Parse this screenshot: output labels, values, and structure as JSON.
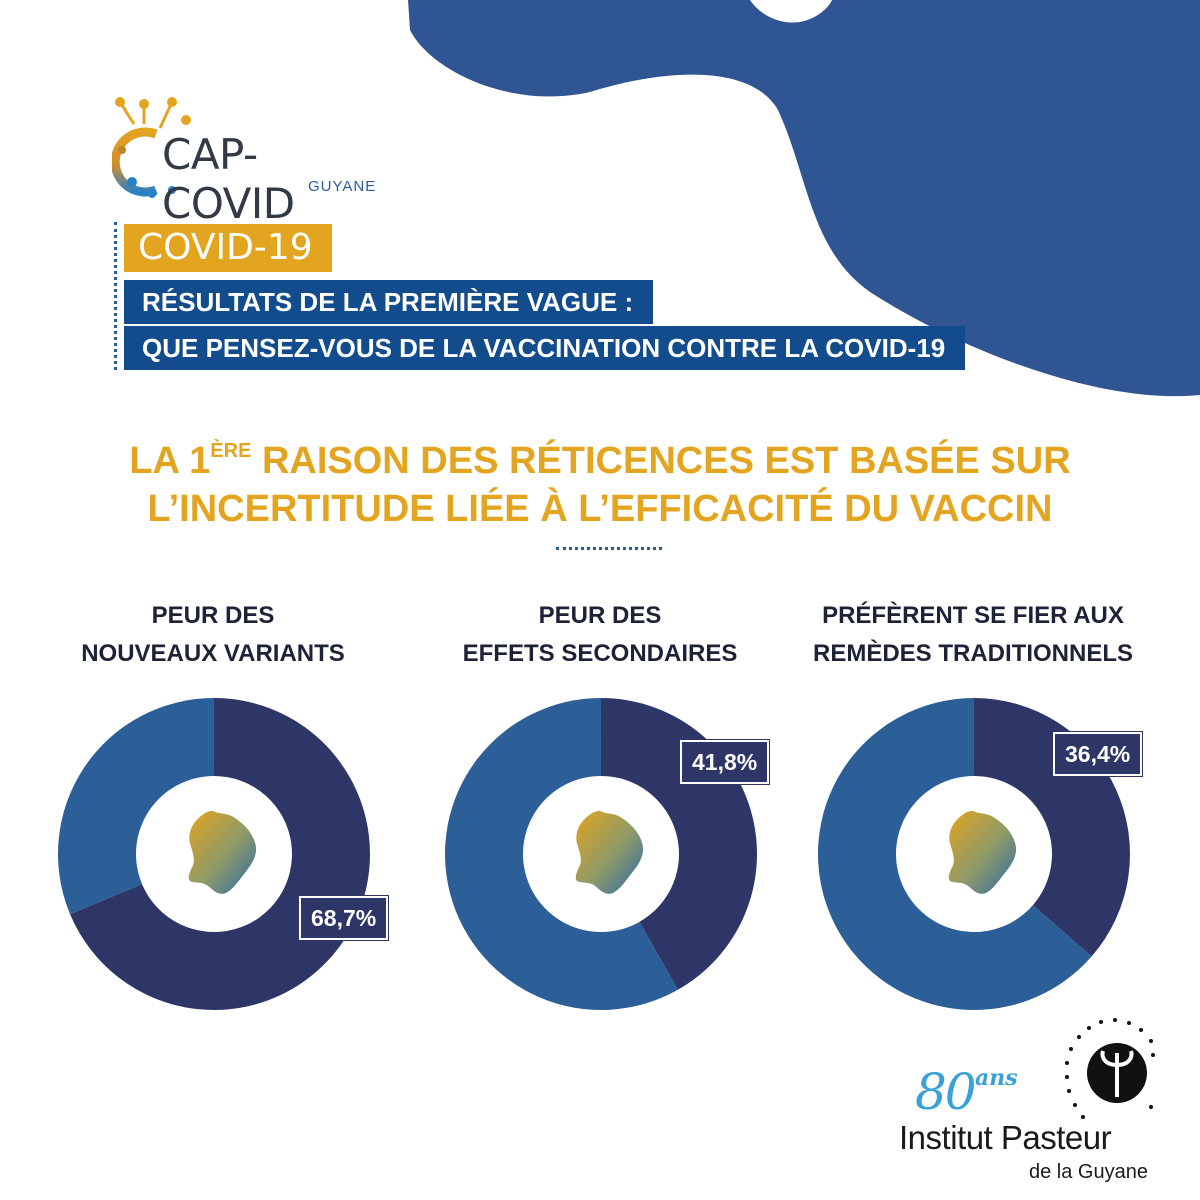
{
  "logo": {
    "name": "CAP-COVID",
    "sub": "GUYANE"
  },
  "header": {
    "tag": "COVID-19",
    "title_line1": "RÉSULTATS DE LA PREMIÈRE VAGUE :",
    "title_line2": "QUE PENSEZ-VOUS DE LA VACCINATION CONTRE LA COVID-19"
  },
  "headline": {
    "line1_a": "LA 1",
    "line1_sup": "ÈRE",
    "line1_b": " RAISON DES RÉTICENCES EST BASÉE SUR",
    "line2": "L’INCERTITUDE LIÉE À L’EFFICACITÉ DU VACCIN"
  },
  "colors": {
    "primary": "#2e3668",
    "secondary": "#2c5e98",
    "accent": "#e3a41f",
    "blob": "#2f5692"
  },
  "chart_data": [
    {
      "type": "pie",
      "title_line1": "PEUR DES",
      "title_line2": "NOUVEAUX VARIANTS",
      "value": 68.7,
      "label": "68,7%"
    },
    {
      "type": "pie",
      "title_line1": "PEUR DES",
      "title_line2": "EFFETS SECONDAIRES",
      "value": 41.8,
      "label": "41,8%"
    },
    {
      "type": "pie",
      "title_line1": "PRÉFÈRENT SE FIER AUX",
      "title_line2": "REMÈDES TRADITIONNELS",
      "value": 36.4,
      "label": "36,4%"
    }
  ],
  "footer": {
    "years": "80",
    "years_suffix": "ans",
    "org": "Institut Pasteur",
    "org_sub": "de la Guyane"
  }
}
